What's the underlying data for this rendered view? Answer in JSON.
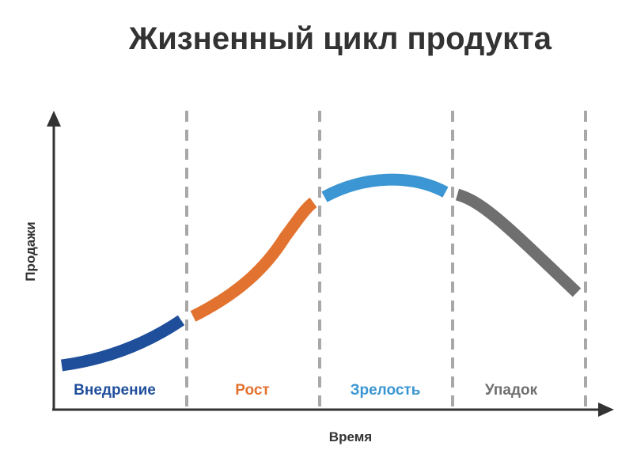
{
  "title": "Жизненный цикл продукта",
  "y_axis_label": "Продажи",
  "x_axis_label": "Время",
  "stages": [
    {
      "label": "Внедрение",
      "color": "#1f4f9b"
    },
    {
      "label": "Рост",
      "color": "#e2722f"
    },
    {
      "label": "Зрелость",
      "color": "#3b96d3"
    },
    {
      "label": "Упадок",
      "color": "#6f6f6f"
    }
  ]
}
